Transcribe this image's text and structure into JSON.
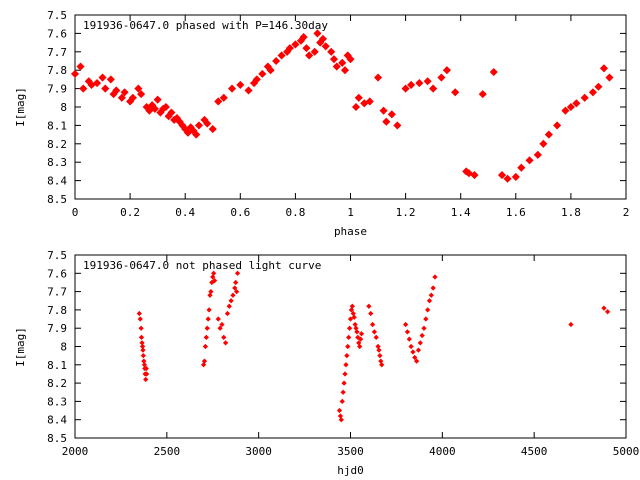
{
  "chart_data": [
    {
      "type": "scatter",
      "title": "191936-0647.0 phased with P=146.30day",
      "xlabel": "phase",
      "ylabel": "I[mag]",
      "xlim": [
        0,
        2
      ],
      "ylim": [
        7.5,
        8.5
      ],
      "y_inverted": true,
      "xticks": [
        "0",
        "0.2",
        "0.4",
        "0.6",
        "0.8",
        "1",
        "1.2",
        "1.4",
        "1.6",
        "1.8",
        "2"
      ],
      "yticks": [
        "7.5",
        "7.6",
        "7.7",
        "7.8",
        "7.9",
        "8",
        "8.1",
        "8.2",
        "8.3",
        "8.4",
        "8.5"
      ],
      "marker_color": "#ff0000",
      "series": [
        {
          "x": [
            0.0,
            0.02,
            0.03,
            0.05,
            0.06,
            0.08,
            0.1,
            0.11,
            0.13,
            0.14,
            0.15,
            0.17,
            0.18,
            0.2,
            0.21,
            0.23,
            0.24,
            0.26,
            0.27,
            0.28,
            0.29,
            0.3,
            0.31,
            0.32,
            0.33,
            0.34,
            0.35,
            0.36,
            0.37,
            0.38,
            0.39,
            0.4,
            0.41,
            0.42,
            0.43,
            0.44,
            0.45,
            0.47,
            0.48,
            0.5,
            0.52,
            0.54,
            0.57,
            0.6,
            0.63,
            0.65,
            0.66,
            0.68,
            0.7,
            0.71,
            0.73,
            0.75,
            0.77,
            0.78,
            0.8,
            0.82,
            0.83,
            0.84,
            0.85,
            0.87,
            0.88,
            0.89,
            0.9,
            0.91,
            0.93,
            0.94,
            0.95,
            0.97,
            0.98,
            0.99,
            1.0,
            1.02,
            1.03,
            1.05,
            1.07,
            1.1,
            1.12,
            1.13,
            1.15,
            1.17,
            1.2,
            1.22,
            1.25,
            1.28,
            1.3,
            1.33,
            1.35,
            1.38,
            1.42,
            1.43,
            1.45,
            1.48,
            1.52,
            1.55,
            1.57,
            1.6,
            1.62,
            1.65,
            1.68,
            1.7,
            1.72,
            1.75,
            1.78,
            1.8,
            1.82,
            1.85,
            1.88,
            1.9,
            1.92,
            1.94
          ],
          "y": [
            7.82,
            7.78,
            7.9,
            7.86,
            7.88,
            7.87,
            7.84,
            7.9,
            7.85,
            7.93,
            7.91,
            7.95,
            7.92,
            7.97,
            7.95,
            7.9,
            7.93,
            8.0,
            8.02,
            7.99,
            8.01,
            7.96,
            8.03,
            8.01,
            8.0,
            8.05,
            8.03,
            8.07,
            8.06,
            8.08,
            8.1,
            8.12,
            8.14,
            8.11,
            8.13,
            8.15,
            8.1,
            8.07,
            8.09,
            8.12,
            7.97,
            7.95,
            7.9,
            7.88,
            7.91,
            7.87,
            7.85,
            7.82,
            7.78,
            7.8,
            7.75,
            7.72,
            7.7,
            7.68,
            7.66,
            7.64,
            7.62,
            7.68,
            7.72,
            7.7,
            7.6,
            7.65,
            7.63,
            7.67,
            7.7,
            7.74,
            7.78,
            7.76,
            7.8,
            7.72,
            7.74,
            8.0,
            7.95,
            7.98,
            7.97,
            7.84,
            8.02,
            8.08,
            8.04,
            8.1,
            7.9,
            7.88,
            7.87,
            7.86,
            7.9,
            7.84,
            7.8,
            7.92,
            8.35,
            8.36,
            8.37,
            7.93,
            7.81,
            8.37,
            8.39,
            8.38,
            8.33,
            8.29,
            8.26,
            8.2,
            8.15,
            8.1,
            8.02,
            8.0,
            7.98,
            7.95,
            7.92,
            7.89,
            7.79,
            7.84
          ]
        }
      ]
    },
    {
      "type": "scatter",
      "title": "191936-0647.0 not phased light curve",
      "xlabel": "hjd0",
      "ylabel": "I[mag]",
      "xlim": [
        2000,
        5000
      ],
      "ylim": [
        7.5,
        8.5
      ],
      "y_inverted": true,
      "xticks": [
        "2000",
        "2500",
        "3000",
        "3500",
        "4000",
        "4500",
        "5000"
      ],
      "yticks": [
        "7.5",
        "7.6",
        "7.7",
        "7.8",
        "7.9",
        "8",
        "8.1",
        "8.2",
        "8.3",
        "8.4",
        "8.5"
      ],
      "marker_color": "#ff0000",
      "series": [
        {
          "x": [
            2350,
            2355,
            2360,
            2362,
            2365,
            2368,
            2370,
            2372,
            2375,
            2378,
            2380,
            2382,
            2385,
            2388,
            2390,
            2700,
            2705,
            2710,
            2715,
            2720,
            2725,
            2730,
            2735,
            2740,
            2745,
            2750,
            2755,
            2760,
            2780,
            2790,
            2800,
            2810,
            2820,
            2830,
            2840,
            2850,
            2860,
            2870,
            2875,
            2880,
            2885,
            3440,
            3445,
            3450,
            3455,
            3460,
            3465,
            3470,
            3475,
            3480,
            3485,
            3490,
            3495,
            3500,
            3505,
            3510,
            3515,
            3520,
            3525,
            3530,
            3535,
            3540,
            3545,
            3550,
            3555,
            3560,
            3600,
            3610,
            3620,
            3630,
            3640,
            3650,
            3655,
            3660,
            3665,
            3670,
            3800,
            3810,
            3820,
            3830,
            3840,
            3850,
            3860,
            3870,
            3880,
            3890,
            3900,
            3910,
            3920,
            3930,
            3940,
            3950,
            3960,
            4700,
            4880,
            4900
          ],
          "y": [
            7.82,
            7.85,
            7.9,
            7.95,
            7.98,
            8.0,
            8.02,
            8.05,
            8.08,
            8.1,
            8.12,
            8.15,
            8.18,
            8.12,
            8.15,
            8.1,
            8.08,
            8.0,
            7.95,
            7.9,
            7.85,
            7.8,
            7.72,
            7.7,
            7.65,
            7.62,
            7.6,
            7.64,
            7.85,
            7.9,
            7.88,
            7.95,
            7.98,
            7.82,
            7.78,
            7.75,
            7.72,
            7.68,
            7.65,
            7.7,
            7.6,
            8.35,
            8.38,
            8.4,
            8.3,
            8.25,
            8.2,
            8.15,
            8.1,
            8.05,
            8.0,
            7.95,
            7.9,
            7.85,
            7.8,
            7.78,
            7.82,
            7.84,
            7.88,
            7.9,
            7.92,
            7.95,
            7.98,
            8.0,
            7.96,
            7.93,
            7.78,
            7.82,
            7.88,
            7.92,
            7.95,
            8.0,
            8.02,
            8.05,
            8.08,
            8.1,
            7.88,
            7.92,
            7.96,
            8.0,
            8.03,
            8.06,
            8.08,
            8.02,
            7.98,
            7.94,
            7.9,
            7.85,
            7.8,
            7.75,
            7.72,
            7.68,
            7.62,
            7.88,
            7.79,
            7.81
          ]
        }
      ]
    }
  ]
}
